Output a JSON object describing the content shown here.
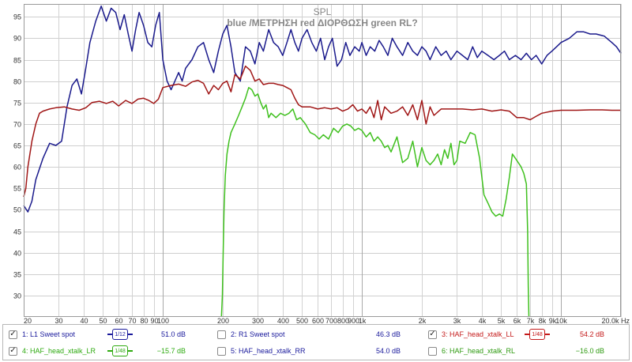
{
  "chart_data": {
    "type": "line",
    "title": "SPL",
    "subtitle": "blue  /ΜΕΤΡΗΣΗ   red ΔΙΟΡΘΩΣΗ green RL?",
    "x_scale": "log",
    "xlim": [
      20,
      20000
    ],
    "ylim": [
      25,
      98
    ],
    "grid": true,
    "x_ticks": [
      {
        "v": 20,
        "label": "20"
      },
      {
        "v": 30,
        "label": "30"
      },
      {
        "v": 40,
        "label": "40"
      },
      {
        "v": 50,
        "label": "50"
      },
      {
        "v": 60,
        "label": "60"
      },
      {
        "v": 70,
        "label": "70"
      },
      {
        "v": 80,
        "label": "80"
      },
      {
        "v": 90,
        "label": "90"
      },
      {
        "v": 100,
        "label": "100"
      },
      {
        "v": 200,
        "label": "200"
      },
      {
        "v": 300,
        "label": "300"
      },
      {
        "v": 400,
        "label": "400"
      },
      {
        "v": 500,
        "label": "500"
      },
      {
        "v": 600,
        "label": "600"
      },
      {
        "v": 700,
        "label": "700"
      },
      {
        "v": 800,
        "label": "800"
      },
      {
        "v": 900,
        "label": "900"
      },
      {
        "v": 1000,
        "label": "1k"
      },
      {
        "v": 2000,
        "label": "2k"
      },
      {
        "v": 3000,
        "label": "3k"
      },
      {
        "v": 4000,
        "label": "4k"
      },
      {
        "v": 5000,
        "label": "5k"
      },
      {
        "v": 6000,
        "label": "6k"
      },
      {
        "v": 7000,
        "label": "7k"
      },
      {
        "v": 8000,
        "label": "8k"
      },
      {
        "v": 9000,
        "label": "9k"
      },
      {
        "v": 10000,
        "label": "10k"
      },
      {
        "v": 20000,
        "label": "20.0k Hz"
      }
    ],
    "y_ticks": [
      30,
      35,
      40,
      45,
      50,
      55,
      60,
      65,
      70,
      75,
      80,
      85,
      90,
      95
    ],
    "series": [
      {
        "name": "1: L1 Sweet spot",
        "color": "#1a1a8c",
        "x": [
          20,
          21,
          22,
          23,
          25,
          27,
          29,
          31,
          33,
          35,
          37,
          39,
          41,
          43,
          46,
          49,
          52,
          55,
          58,
          61,
          64,
          67,
          70,
          73,
          76,
          80,
          84,
          88,
          92,
          96,
          100,
          105,
          110,
          115,
          120,
          125,
          130,
          140,
          150,
          160,
          170,
          180,
          190,
          200,
          210,
          220,
          230,
          245,
          260,
          275,
          290,
          305,
          320,
          340,
          360,
          380,
          400,
          420,
          440,
          460,
          480,
          500,
          530,
          560,
          590,
          620,
          650,
          680,
          710,
          750,
          790,
          830,
          870,
          920,
          970,
          1000,
          1050,
          1100,
          1160,
          1220,
          1280,
          1350,
          1420,
          1500,
          1600,
          1700,
          1800,
          1900,
          2000,
          2100,
          2200,
          2350,
          2500,
          2650,
          2800,
          3000,
          3200,
          3400,
          3600,
          3800,
          4000,
          4300,
          4600,
          4900,
          5200,
          5500,
          5900,
          6300,
          6700,
          7100,
          7500,
          8000,
          8500,
          9000,
          9500,
          10000,
          11000,
          12000,
          13000,
          14000,
          15000,
          16500,
          18000,
          19000,
          20000
        ],
        "y": [
          51,
          49.5,
          52,
          57,
          62,
          65.5,
          65,
          66,
          74,
          79,
          80.5,
          77,
          83,
          89,
          94,
          97.5,
          94,
          97,
          96,
          92,
          95.5,
          91,
          87,
          92,
          96,
          93,
          89,
          88,
          93,
          96,
          85,
          80,
          78,
          80,
          82,
          80,
          83,
          85,
          88,
          89,
          85,
          82,
          87,
          91,
          93,
          88,
          82,
          80,
          88,
          87,
          84,
          89,
          87,
          92,
          89,
          88,
          86,
          89,
          92,
          89,
          87,
          90,
          92,
          89,
          87,
          90,
          85,
          88,
          90,
          83.5,
          85,
          89,
          86,
          88,
          87,
          89,
          86,
          88,
          87,
          89.5,
          88,
          86,
          90,
          88,
          86,
          89,
          87,
          86,
          88,
          87,
          85,
          88,
          86,
          87,
          85,
          87,
          86,
          85,
          88,
          85.5,
          87,
          86,
          85,
          86,
          87,
          85,
          86,
          85,
          86.5,
          85,
          86,
          84,
          86,
          87,
          88,
          89,
          90,
          91.5,
          91.5,
          91,
          91,
          90.5,
          89,
          88,
          86.5
        ]
      },
      {
        "name": "3: HAF_head_xtalk_LL",
        "color": "#a01616",
        "x": [
          20,
          20.5,
          21,
          22,
          23,
          24,
          25,
          27,
          29,
          32,
          35,
          38,
          41,
          44,
          48,
          52,
          56,
          60,
          65,
          70,
          75,
          80,
          85,
          90,
          95,
          100,
          110,
          120,
          130,
          140,
          150,
          160,
          170,
          180,
          190,
          200,
          210,
          220,
          230,
          245,
          260,
          275,
          290,
          305,
          320,
          340,
          360,
          380,
          400,
          420,
          440,
          460,
          480,
          500,
          550,
          600,
          650,
          700,
          750,
          800,
          850,
          900,
          950,
          1000,
          1050,
          1100,
          1150,
          1200,
          1250,
          1300,
          1400,
          1500,
          1600,
          1700,
          1800,
          1900,
          2000,
          2100,
          2200,
          2300,
          2500,
          2800,
          3200,
          3600,
          4000,
          4500,
          5000,
          5500,
          6000,
          6500,
          7000,
          7500,
          8000,
          9000,
          10000,
          12000,
          14000,
          16000,
          18000,
          20000
        ],
        "y": [
          53,
          55,
          60,
          66,
          70,
          72.5,
          73,
          73.5,
          73.8,
          74,
          73.5,
          73.2,
          73.8,
          75,
          75.3,
          74.8,
          75.3,
          74.2,
          75.5,
          74.8,
          75.8,
          76,
          75.5,
          74.8,
          75.8,
          78.5,
          79,
          79.3,
          78.8,
          79.8,
          80.2,
          79.5,
          77,
          79,
          78,
          79.5,
          80,
          77.5,
          81.5,
          80.5,
          83.5,
          82.5,
          80,
          80.5,
          79.2,
          79.5,
          79.5,
          79.2,
          79,
          78.5,
          78,
          76,
          74.5,
          74,
          74,
          73.5,
          73.8,
          73.5,
          73.8,
          73,
          73.5,
          74.5,
          73,
          73.5,
          72.5,
          74,
          71.5,
          75.5,
          71,
          74,
          72.5,
          73,
          74,
          72,
          74.5,
          71,
          75.5,
          70,
          74,
          72,
          73.5,
          73.5,
          73.5,
          73.3,
          73.5,
          73,
          73.3,
          73,
          71.5,
          71.5,
          71,
          71.8,
          72.5,
          73,
          73.2,
          73.2,
          73.3,
          73.3,
          73.2,
          73.2
        ]
      },
      {
        "name": "4: HAF_head_xtalk_LR",
        "color": "#3fc01e",
        "x": [
          197,
          199,
          201,
          203,
          206,
          210,
          215,
          220,
          230,
          240,
          250,
          260,
          270,
          280,
          290,
          300,
          310,
          320,
          330,
          340,
          350,
          370,
          390,
          410,
          430,
          450,
          470,
          490,
          520,
          550,
          580,
          610,
          640,
          680,
          720,
          760,
          800,
          840,
          880,
          920,
          960,
          1000,
          1050,
          1100,
          1150,
          1200,
          1250,
          1300,
          1350,
          1400,
          1500,
          1600,
          1700,
          1800,
          1900,
          2000,
          2100,
          2200,
          2300,
          2400,
          2500,
          2600,
          2700,
          2800,
          2900,
          3000,
          3100,
          3300,
          3500,
          3700,
          3900,
          4100,
          4300,
          4500,
          4700,
          4900,
          5100,
          5300,
          5500,
          5700,
          5900,
          6100,
          6300,
          6500,
          6700,
          6800,
          6850,
          6900
        ],
        "y": [
          25,
          30,
          40,
          50,
          58,
          63,
          66,
          68,
          70,
          72,
          74,
          76,
          78.5,
          78,
          76.5,
          77,
          75,
          73.5,
          74.5,
          71.5,
          72.5,
          71.5,
          72.5,
          72,
          72.5,
          73.5,
          71,
          71.5,
          70,
          68,
          67.5,
          66.5,
          67.5,
          66.5,
          69,
          68,
          69.5,
          70,
          69.5,
          68.5,
          69,
          68.5,
          67,
          68,
          66,
          67,
          66,
          64.5,
          65,
          63.5,
          67,
          61,
          62,
          66,
          60,
          64.5,
          61.5,
          60.5,
          61.5,
          63,
          60.5,
          64,
          62,
          65.5,
          60.5,
          61.5,
          66,
          65.5,
          68,
          67.5,
          62,
          53.5,
          51.5,
          49.5,
          48.5,
          49,
          48.5,
          52.5,
          57.5,
          63,
          62,
          61,
          60,
          58.5,
          56,
          45,
          32,
          25
        ]
      }
    ],
    "legend": [
      {
        "checked": true,
        "label": "1: L1 Sweet spot",
        "color": "#1a1a9c",
        "smoothing": "1/12",
        "value": "51.0 dB"
      },
      {
        "checked": false,
        "label": "2: R1 Sweet spot",
        "color": "#1a1a9c",
        "smoothing": "",
        "value": "46.3 dB"
      },
      {
        "checked": true,
        "label": "3: HAF_head_xtalk_LL",
        "color": "#c41a1a",
        "smoothing": "1/48",
        "value": "54.2 dB"
      },
      {
        "checked": true,
        "label": "4: HAF_head_xtalk_LR",
        "color": "#2eaa10",
        "smoothing": "1/48",
        "value": "−15.7 dB"
      },
      {
        "checked": false,
        "label": "5: HAF_head_xtalk_RR",
        "color": "#1a1a9c",
        "smoothing": "",
        "value": "54.0 dB"
      },
      {
        "checked": false,
        "label": "6: HAF_head_xtalk_RL",
        "color": "#2e9a10",
        "smoothing": "",
        "value": "−16.0 dB"
      }
    ]
  }
}
